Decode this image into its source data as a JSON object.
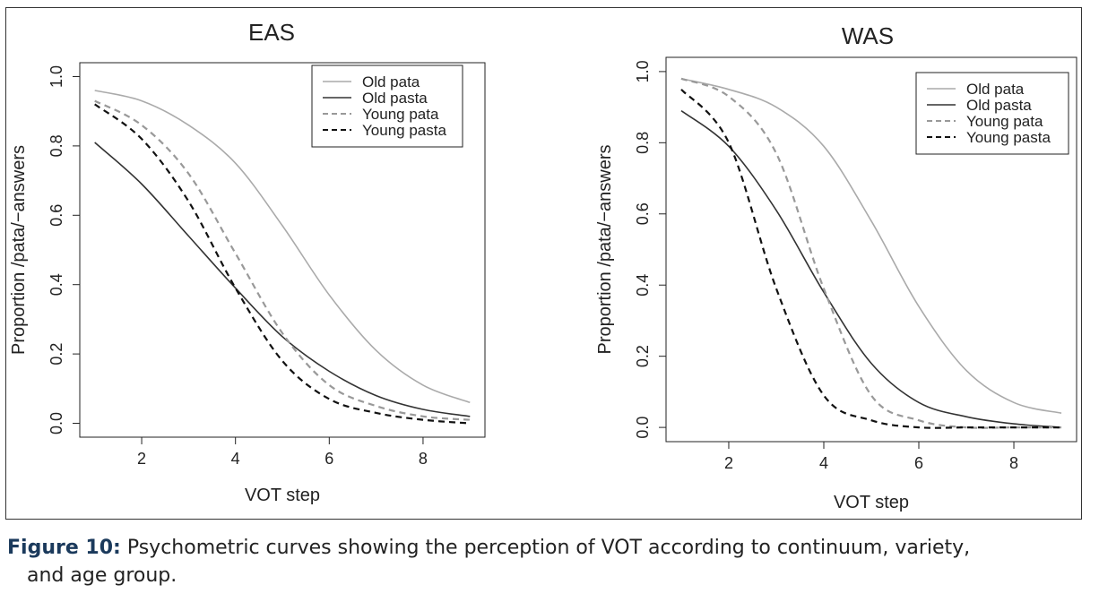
{
  "chart_data": [
    {
      "type": "line",
      "title": "EAS",
      "xlabel": "VOT step",
      "ylabel": "Proportion /pata/−answers",
      "xlim": [
        1,
        9
      ],
      "ylim": [
        0,
        1
      ],
      "xticks": [
        2,
        4,
        6,
        8
      ],
      "yticks": [
        "0.0",
        "0.2",
        "0.4",
        "0.6",
        "0.8",
        "1.0"
      ],
      "legend_position": "top-right",
      "grid": false,
      "series": [
        {
          "name": "Old pata",
          "color": "#aaaaaa",
          "dash": "solid",
          "x": [
            1,
            2,
            3,
            4,
            5,
            6,
            7,
            8,
            9
          ],
          "y": [
            0.96,
            0.93,
            0.86,
            0.75,
            0.57,
            0.37,
            0.21,
            0.11,
            0.06
          ]
        },
        {
          "name": "Old pasta",
          "color": "#333333",
          "dash": "solid",
          "x": [
            1,
            2,
            3,
            4,
            5,
            6,
            7,
            8,
            9
          ],
          "y": [
            0.81,
            0.69,
            0.54,
            0.39,
            0.25,
            0.15,
            0.08,
            0.04,
            0.02
          ]
        },
        {
          "name": "Young pata",
          "color": "#999999",
          "dash": "dashed",
          "x": [
            1,
            2,
            3,
            4,
            5,
            6,
            7,
            8,
            9
          ],
          "y": [
            0.93,
            0.86,
            0.72,
            0.49,
            0.26,
            0.11,
            0.05,
            0.02,
            0.01
          ]
        },
        {
          "name": "Young pasta",
          "color": "#111111",
          "dash": "dashed",
          "x": [
            1,
            2,
            3,
            4,
            5,
            6,
            7,
            8,
            9
          ],
          "y": [
            0.92,
            0.82,
            0.64,
            0.39,
            0.18,
            0.07,
            0.03,
            0.01,
            0.0
          ]
        }
      ]
    },
    {
      "type": "line",
      "title": "WAS",
      "xlabel": "VOT step",
      "ylabel": "Proportion /pata/−answers",
      "xlim": [
        1,
        9
      ],
      "ylim": [
        0,
        1
      ],
      "xticks": [
        2,
        4,
        6,
        8
      ],
      "yticks": [
        "0.0",
        "0.2",
        "0.4",
        "0.6",
        "0.8",
        "1.0"
      ],
      "legend_position": "top-right",
      "grid": false,
      "series": [
        {
          "name": "Old pata",
          "color": "#aaaaaa",
          "dash": "solid",
          "x": [
            1,
            2,
            3,
            4,
            5,
            6,
            7,
            8,
            9
          ],
          "y": [
            0.98,
            0.95,
            0.9,
            0.79,
            0.58,
            0.34,
            0.16,
            0.07,
            0.04
          ]
        },
        {
          "name": "Old pasta",
          "color": "#333333",
          "dash": "solid",
          "x": [
            1,
            2,
            3,
            4,
            5,
            6,
            7,
            8,
            9
          ],
          "y": [
            0.89,
            0.79,
            0.61,
            0.38,
            0.18,
            0.07,
            0.03,
            0.01,
            0.0
          ]
        },
        {
          "name": "Young pata",
          "color": "#999999",
          "dash": "dashed",
          "x": [
            1,
            2,
            3,
            4,
            5,
            6,
            7,
            8,
            9
          ],
          "y": [
            0.98,
            0.93,
            0.77,
            0.39,
            0.09,
            0.02,
            0.0,
            0.0,
            0.0
          ]
        },
        {
          "name": "Young pasta",
          "color": "#111111",
          "dash": "dashed",
          "x": [
            1,
            2,
            3,
            4,
            5,
            6,
            7,
            8,
            9
          ],
          "y": [
            0.95,
            0.8,
            0.39,
            0.09,
            0.02,
            0.0,
            0.0,
            0.0,
            0.0
          ]
        }
      ]
    }
  ],
  "caption": {
    "label": "Figure 10:",
    "text_line1": "Psychometric curves showing the perception of VOT according to continuum, variety,",
    "text_line2": "and age group."
  }
}
